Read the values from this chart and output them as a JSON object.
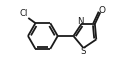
{
  "bg_color": "#ffffff",
  "line_color": "#1a1a1a",
  "line_width": 1.3,
  "text_color": "#1a1a1a",
  "cl_label": "Cl",
  "s_label": "S",
  "n_label": "N",
  "o_label": "O",
  "figsize": [
    1.2,
    0.72
  ],
  "dpi": 100,
  "xlim": [
    0,
    4.2
  ],
  "ylim": [
    0.2,
    2.6
  ]
}
